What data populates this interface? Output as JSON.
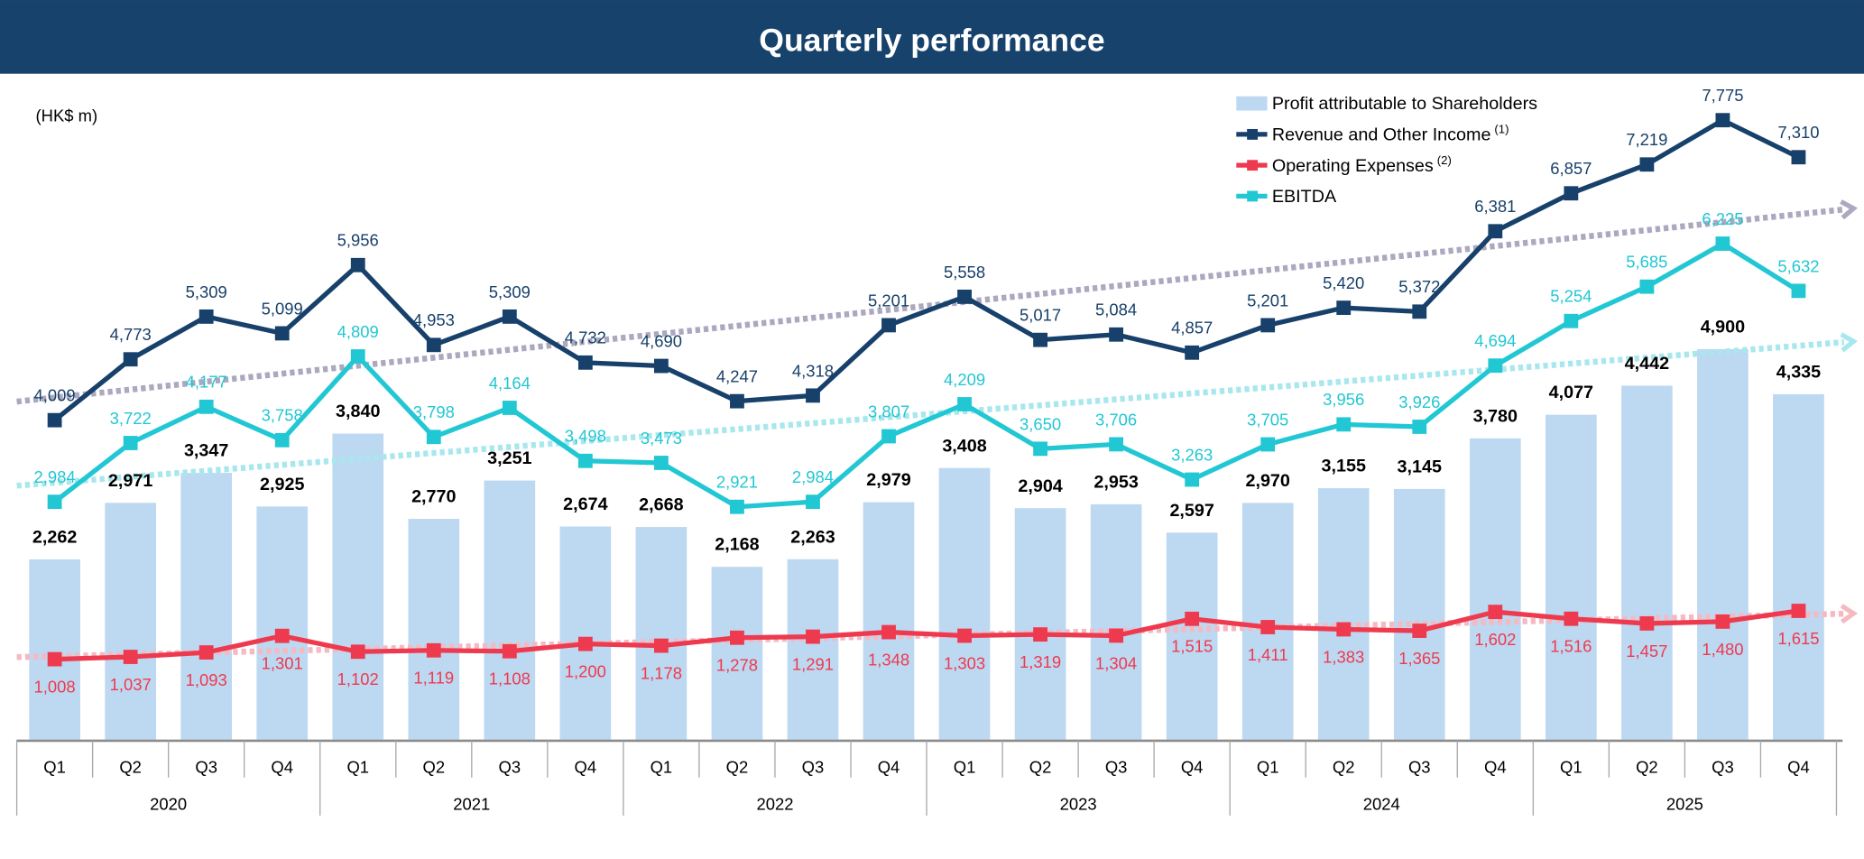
{
  "chart_data": {
    "type": "bar+line",
    "title": "Quarterly performance",
    "unit_label": "(HK$ m)",
    "years": [
      "2020",
      "2021",
      "2022",
      "2023",
      "2024",
      "2025"
    ],
    "quarters": [
      "Q1",
      "Q2",
      "Q3",
      "Q4"
    ],
    "categories": [
      "2020 Q1",
      "2020 Q2",
      "2020 Q3",
      "2020 Q4",
      "2021 Q1",
      "2021 Q2",
      "2021 Q3",
      "2021 Q4",
      "2022 Q1",
      "2022 Q2",
      "2022 Q3",
      "2022 Q4",
      "2023 Q1",
      "2023 Q2",
      "2023 Q3",
      "2023 Q4",
      "2024 Q1",
      "2024 Q2",
      "2024 Q3",
      "2024 Q4",
      "2025 Q1",
      "2025 Q2",
      "2025 Q3",
      "2025 Q4"
    ],
    "legend_position": "top-right",
    "grid": false,
    "series": [
      {
        "name": "Profit attributable to Shareholders",
        "type": "bar",
        "color": "#BDD8F1",
        "label_color": "#000000",
        "values": [
          2262,
          2971,
          3347,
          2925,
          3840,
          2770,
          3251,
          2674,
          2668,
          2168,
          2263,
          2979,
          3408,
          2904,
          2953,
          2597,
          2970,
          3155,
          3145,
          3780,
          4077,
          4442,
          4900,
          4335
        ]
      },
      {
        "name": "Revenue and Other Income",
        "sup": "(1)",
        "type": "line",
        "color": "#17406A",
        "label_color": "#17406A",
        "values": [
          4009,
          4773,
          5309,
          5099,
          5956,
          4953,
          5309,
          4732,
          4690,
          4247,
          4318,
          5201,
          5558,
          5017,
          5084,
          4857,
          5201,
          5420,
          5372,
          6381,
          6857,
          7219,
          7775,
          7310
        ]
      },
      {
        "name": "Operating Expenses",
        "sup": "(2)",
        "type": "line",
        "color": "#EE3A4F",
        "label_color": "#EE3A4F",
        "values": [
          1008,
          1037,
          1093,
          1301,
          1102,
          1119,
          1108,
          1200,
          1178,
          1278,
          1291,
          1348,
          1303,
          1319,
          1304,
          1515,
          1411,
          1383,
          1365,
          1602,
          1516,
          1457,
          1480,
          1615
        ]
      },
      {
        "name": "EBITDA",
        "type": "line",
        "color": "#22C7D4",
        "label_color": "#22C7D4",
        "values": [
          2984,
          3722,
          4177,
          3758,
          4809,
          3798,
          4164,
          3498,
          3473,
          2921,
          2984,
          3807,
          4209,
          3650,
          3706,
          3263,
          3705,
          3956,
          3926,
          4694,
          5254,
          5685,
          6225,
          5632
        ]
      }
    ],
    "ylim": [
      0,
      9300
    ],
    "trendlines": [
      {
        "series": "Revenue and Other Income",
        "color": "#ABA8BF"
      },
      {
        "series": "EBITDA",
        "color": "#A9E7EE"
      },
      {
        "series": "Operating Expenses",
        "color": "#F5B9C2"
      }
    ]
  },
  "colors": {
    "header": "#17426B",
    "header_text": "#FFFFFF",
    "axis": "#9A9A9A"
  }
}
